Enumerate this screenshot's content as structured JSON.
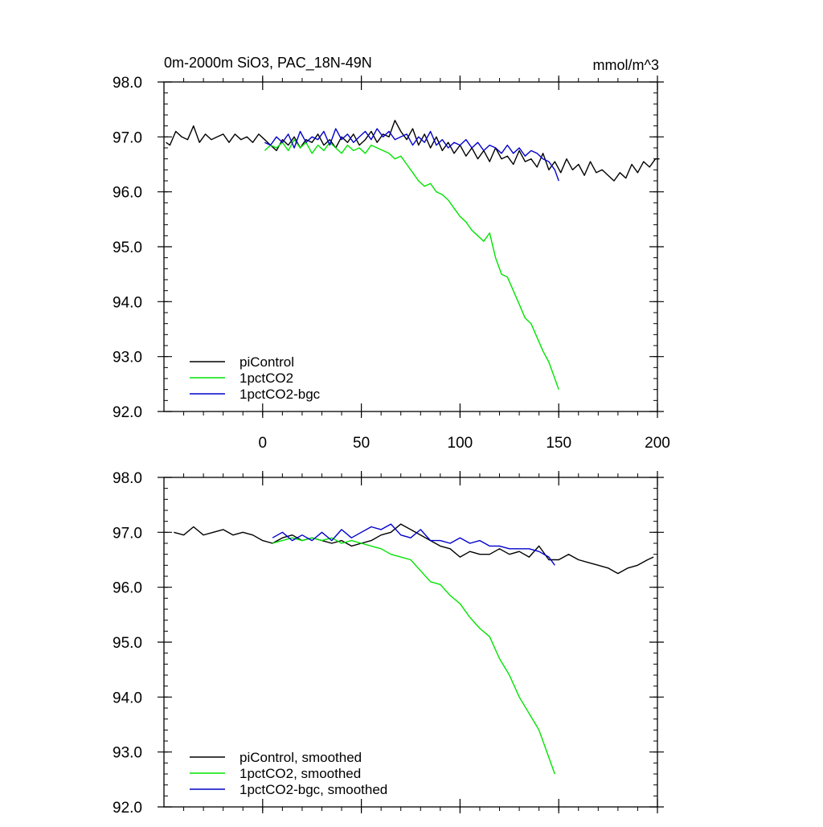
{
  "chart_data": [
    {
      "type": "line",
      "title": "0m-2000m SiO3, PAC_18N-49N",
      "units": "mmol/m^3",
      "xlim": [
        -50,
        200
      ],
      "ylim": [
        92.0,
        98.0
      ],
      "x_ticks": [
        0,
        50,
        100,
        150,
        200
      ],
      "y_ticks": [
        "92.0",
        "93.0",
        "94.0",
        "95.0",
        "96.0",
        "97.0",
        "98.0"
      ],
      "legend_position": "bottom-left",
      "series": [
        {
          "name": "piControl",
          "color": "#000000",
          "x": [
            -49,
            -47,
            -44,
            -41,
            -38,
            -35,
            -32,
            -29,
            -26,
            -23,
            -20,
            -17,
            -14,
            -11,
            -8,
            -5,
            -2,
            1,
            4,
            7,
            10,
            13,
            16,
            19,
            22,
            25,
            28,
            31,
            34,
            37,
            40,
            43,
            46,
            49,
            52,
            55,
            58,
            61,
            64,
            67,
            70,
            73,
            76,
            79,
            82,
            85,
            88,
            91,
            94,
            97,
            100,
            103,
            106,
            109,
            112,
            115,
            118,
            121,
            124,
            127,
            130,
            133,
            136,
            139,
            142,
            145,
            148,
            151,
            154,
            157,
            160,
            163,
            166,
            169,
            172,
            175,
            178,
            181,
            184,
            187,
            190,
            193,
            196,
            199,
            201
          ],
          "values": [
            96.9,
            96.85,
            97.1,
            97.0,
            96.95,
            97.2,
            96.9,
            97.05,
            96.95,
            97.0,
            97.05,
            96.9,
            97.05,
            96.95,
            97.0,
            96.9,
            97.05,
            96.95,
            96.85,
            96.75,
            96.95,
            96.85,
            97.0,
            96.8,
            96.95,
            96.9,
            97.05,
            96.85,
            96.95,
            96.8,
            97.0,
            96.9,
            97.05,
            96.85,
            96.95,
            97.1,
            96.9,
            97.05,
            97.0,
            97.3,
            97.1,
            96.95,
            97.15,
            96.85,
            97.05,
            96.8,
            97.0,
            96.75,
            96.9,
            96.7,
            96.85,
            96.65,
            96.8,
            96.6,
            96.75,
            96.55,
            96.8,
            96.6,
            96.65,
            96.5,
            96.75,
            96.55,
            96.6,
            96.45,
            96.7,
            96.4,
            96.55,
            96.35,
            96.6,
            96.4,
            96.5,
            96.3,
            96.55,
            96.35,
            96.4,
            96.3,
            96.2,
            96.35,
            96.25,
            96.5,
            96.35,
            96.55,
            96.45,
            96.6,
            96.6
          ]
        },
        {
          "name": "1pctCO2",
          "color": "#00e400",
          "x": [
            1,
            4,
            7,
            10,
            13,
            16,
            19,
            22,
            25,
            28,
            31,
            34,
            37,
            40,
            43,
            46,
            49,
            52,
            55,
            58,
            61,
            64,
            67,
            70,
            73,
            76,
            79,
            82,
            85,
            88,
            91,
            94,
            97,
            100,
            103,
            106,
            109,
            112,
            115,
            118,
            121,
            124,
            127,
            130,
            133,
            136,
            139,
            142,
            145,
            148,
            150
          ],
          "values": [
            96.75,
            96.85,
            96.8,
            96.9,
            96.75,
            96.95,
            96.8,
            96.9,
            96.7,
            96.85,
            96.75,
            96.9,
            96.8,
            96.7,
            96.85,
            96.75,
            96.8,
            96.7,
            96.85,
            96.8,
            96.75,
            96.7,
            96.6,
            96.65,
            96.5,
            96.35,
            96.2,
            96.1,
            96.15,
            96.0,
            95.95,
            95.85,
            95.7,
            95.55,
            95.45,
            95.3,
            95.2,
            95.1,
            95.25,
            94.8,
            94.5,
            94.45,
            94.2,
            93.95,
            93.7,
            93.6,
            93.35,
            93.1,
            92.9,
            92.6,
            92.4
          ]
        },
        {
          "name": "1pctCO2-bgc",
          "color": "#0000cc",
          "x": [
            1,
            4,
            7,
            10,
            13,
            16,
            19,
            22,
            25,
            28,
            31,
            34,
            37,
            40,
            43,
            46,
            49,
            52,
            55,
            58,
            61,
            64,
            67,
            70,
            73,
            76,
            79,
            82,
            85,
            88,
            91,
            94,
            97,
            100,
            103,
            106,
            109,
            112,
            115,
            118,
            121,
            124,
            127,
            130,
            133,
            136,
            139,
            142,
            145,
            148,
            150
          ],
          "values": [
            96.9,
            96.85,
            97.0,
            96.9,
            97.05,
            96.8,
            97.1,
            96.9,
            97.0,
            96.95,
            97.1,
            96.85,
            97.15,
            96.95,
            97.05,
            96.9,
            97.0,
            97.1,
            96.95,
            97.15,
            97.0,
            97.1,
            96.95,
            97.0,
            97.05,
            96.85,
            97.0,
            96.9,
            97.1,
            96.85,
            96.95,
            96.8,
            96.9,
            96.85,
            96.95,
            96.8,
            96.9,
            96.75,
            96.85,
            96.8,
            96.7,
            96.85,
            96.7,
            96.8,
            96.65,
            96.75,
            96.7,
            96.6,
            96.55,
            96.4,
            96.2
          ]
        }
      ]
    },
    {
      "type": "line",
      "xlim": [
        -50,
        200
      ],
      "ylim": [
        92.0,
        98.0
      ],
      "y_ticks": [
        "92.0",
        "93.0",
        "94.0",
        "95.0",
        "96.0",
        "97.0",
        "98.0"
      ],
      "legend_position": "bottom-left",
      "series": [
        {
          "name": "piControl, smoothed",
          "color": "#000000",
          "x": [
            -45,
            -40,
            -35,
            -30,
            -25,
            -20,
            -15,
            -10,
            -5,
            0,
            5,
            10,
            15,
            20,
            25,
            30,
            35,
            40,
            45,
            50,
            55,
            60,
            65,
            70,
            75,
            80,
            85,
            90,
            95,
            100,
            105,
            110,
            115,
            120,
            125,
            130,
            135,
            140,
            145,
            150,
            155,
            160,
            165,
            170,
            175,
            180,
            185,
            190,
            195,
            198
          ],
          "values": [
            97.0,
            96.95,
            97.1,
            96.95,
            97.0,
            97.05,
            96.95,
            97.0,
            96.95,
            96.85,
            96.8,
            96.9,
            96.95,
            96.85,
            96.9,
            96.85,
            96.8,
            96.85,
            96.75,
            96.8,
            96.85,
            96.95,
            97.0,
            97.15,
            97.05,
            96.95,
            96.85,
            96.75,
            96.7,
            96.55,
            96.65,
            96.6,
            96.6,
            96.7,
            96.6,
            96.65,
            96.55,
            96.75,
            96.5,
            96.5,
            96.6,
            96.5,
            96.45,
            96.4,
            96.35,
            96.25,
            96.35,
            96.4,
            96.5,
            96.55
          ]
        },
        {
          "name": "1pctCO2, smoothed",
          "color": "#00e400",
          "x": [
            5,
            10,
            15,
            20,
            25,
            30,
            35,
            40,
            45,
            50,
            55,
            60,
            65,
            70,
            75,
            80,
            85,
            90,
            95,
            100,
            105,
            110,
            115,
            120,
            125,
            130,
            135,
            140,
            145,
            148
          ],
          "values": [
            96.8,
            96.85,
            96.9,
            96.85,
            96.9,
            96.85,
            96.9,
            96.8,
            96.85,
            96.8,
            96.75,
            96.7,
            96.6,
            96.55,
            96.5,
            96.3,
            96.1,
            96.05,
            95.85,
            95.7,
            95.45,
            95.25,
            95.1,
            94.7,
            94.4,
            94.0,
            93.7,
            93.4,
            92.9,
            92.6
          ]
        },
        {
          "name": "1pctCO2-bgc, smoothed",
          "color": "#0000cc",
          "x": [
            5,
            10,
            15,
            20,
            25,
            30,
            35,
            40,
            45,
            50,
            55,
            60,
            65,
            70,
            75,
            80,
            85,
            90,
            95,
            100,
            105,
            110,
            115,
            120,
            125,
            130,
            135,
            140,
            145,
            148
          ],
          "values": [
            96.9,
            97.0,
            96.85,
            96.95,
            96.85,
            97.0,
            96.85,
            97.05,
            96.9,
            97.0,
            97.1,
            97.05,
            97.15,
            96.95,
            96.9,
            97.05,
            96.85,
            96.85,
            96.8,
            96.9,
            96.8,
            96.85,
            96.75,
            96.75,
            96.7,
            96.7,
            96.7,
            96.65,
            96.55,
            96.4
          ]
        }
      ]
    }
  ]
}
